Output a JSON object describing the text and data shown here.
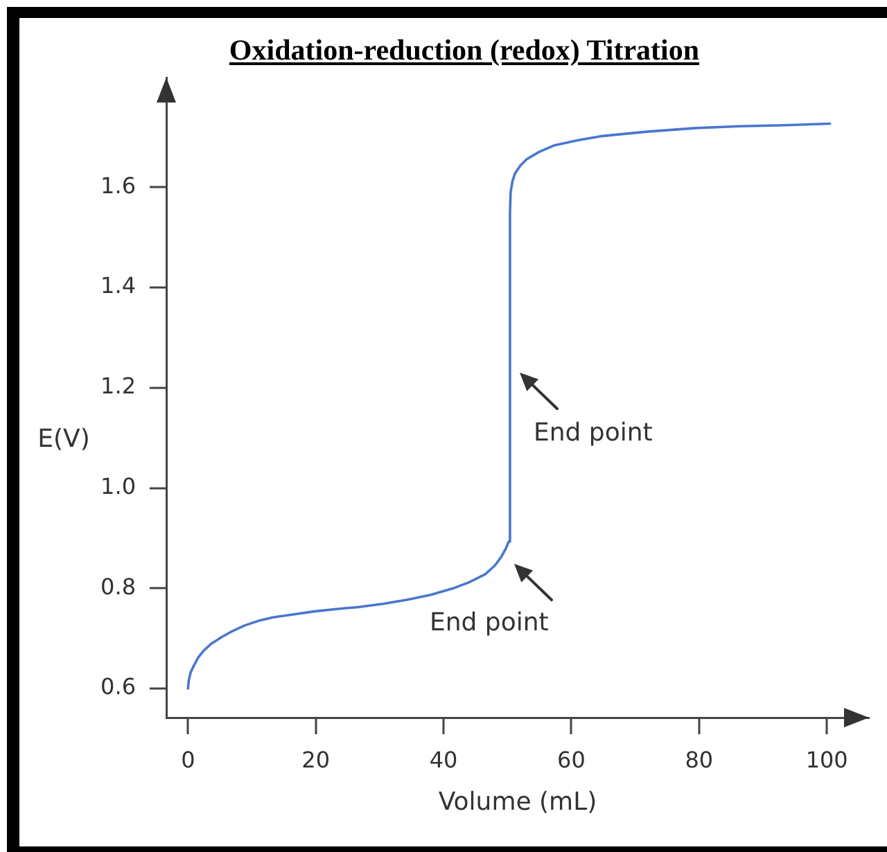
{
  "chart_data": {
    "type": "line",
    "title": "Oxidation-reduction (redox) Titration",
    "xlabel": "Volume (mL)",
    "ylabel": "E(V)",
    "x": [
      0,
      0.1,
      0.4,
      1,
      1.6,
      2.4,
      3.7,
      5.3,
      7,
      8.9,
      11,
      13.3,
      16.5,
      19.8,
      23.5,
      27,
      30.5,
      34.2,
      38,
      41.5,
      44,
      46.5,
      48,
      49,
      49.7,
      50.2,
      50.4,
      50.5,
      50.8,
      51.2,
      52,
      53,
      55,
      57.4,
      61,
      64.6,
      71.8,
      79.1,
      86.3,
      93.5,
      100.5
    ],
    "series": [
      {
        "color": "#4a76d0",
        "values": [
          0.6,
          0.615,
          0.632,
          0.648,
          0.662,
          0.675,
          0.69,
          0.703,
          0.715,
          0.726,
          0.735,
          0.742,
          0.748,
          0.754,
          0.759,
          0.763,
          0.769,
          0.777,
          0.787,
          0.8,
          0.812,
          0.828,
          0.845,
          0.862,
          0.878,
          0.893,
          1.55,
          1.59,
          1.613,
          1.628,
          1.643,
          1.656,
          1.671,
          1.684,
          1.694,
          1.702,
          1.711,
          1.718,
          1.722,
          1.724,
          1.727
        ]
      }
    ],
    "xlim": [
      -3.4,
      106.6
    ],
    "ylim": [
      0.542,
      1.819
    ],
    "xticks": [
      0,
      20,
      40,
      60,
      80,
      100
    ],
    "yticks": [
      0.6,
      0.8,
      {
        "value": 1.0,
        "label": "1.0"
      },
      1.2,
      1.4,
      1.6
    ],
    "annotations": [
      {
        "text": "End point",
        "x": 50.4,
        "y": 1.23
      },
      {
        "text": "End point",
        "x": 49.5,
        "y": 0.85
      }
    ],
    "grid": false,
    "legend": false,
    "marker": "none",
    "line_style": "solid"
  }
}
